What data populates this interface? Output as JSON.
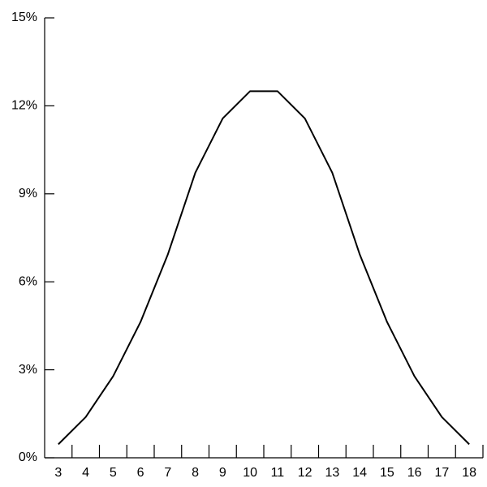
{
  "chart_data": {
    "type": "line",
    "categories": [
      3,
      4,
      5,
      6,
      7,
      8,
      9,
      10,
      11,
      12,
      13,
      14,
      15,
      16,
      17,
      18
    ],
    "values": [
      0.46,
      1.39,
      2.78,
      4.63,
      6.94,
      9.72,
      11.57,
      12.5,
      12.5,
      11.57,
      9.72,
      6.94,
      4.63,
      2.78,
      1.39,
      0.46
    ],
    "color": "#000000",
    "ylim": [
      0,
      15
    ],
    "yticks": [
      {
        "value": 0,
        "label": "0%"
      },
      {
        "value": 3,
        "label": "3%"
      },
      {
        "value": 6,
        "label": "6%"
      },
      {
        "value": 9,
        "label": "9%"
      },
      {
        "value": 12,
        "label": "12%"
      },
      {
        "value": 15,
        "label": "15%"
      }
    ]
  }
}
